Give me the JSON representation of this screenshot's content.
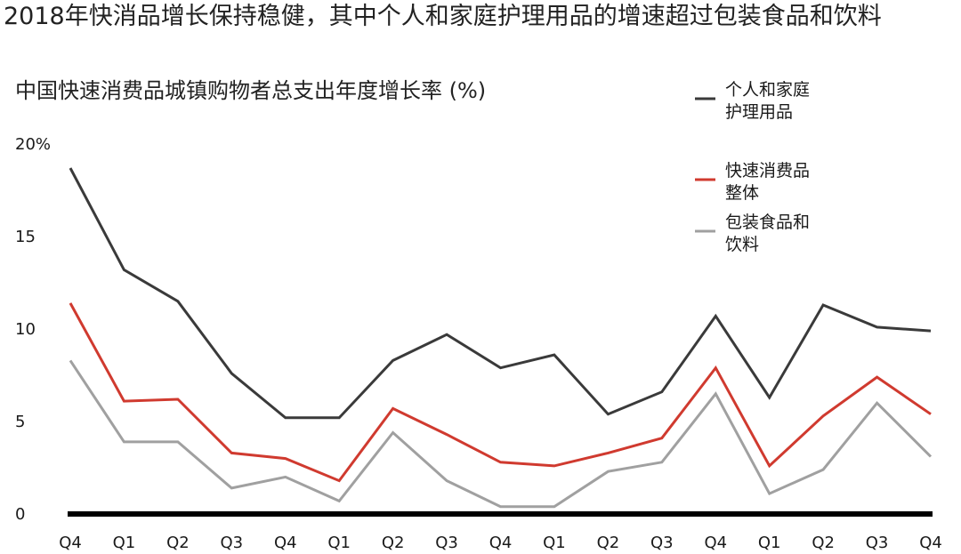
{
  "page": {
    "headline": "2018年快消品增长保持稳健，其中个人和家庭护理用品的增速超过包装食品和饮料"
  },
  "chart_data": {
    "type": "line",
    "title": "中国快速消费品城镇购物者总支出年度增长率 (%)",
    "xlabel": "",
    "ylabel": "",
    "ylim": [
      0,
      20
    ],
    "y_ticks": [
      "0",
      "5",
      "10",
      "15",
      "20%"
    ],
    "y_tick_values": [
      0,
      5,
      10,
      15,
      20
    ],
    "categories": [
      "Q4",
      "Q1",
      "Q2",
      "Q3",
      "Q4",
      "Q1",
      "Q2",
      "Q3",
      "Q4",
      "Q1",
      "Q2",
      "Q3",
      "Q4",
      "Q1",
      "Q2",
      "Q3",
      "Q4"
    ],
    "grid": false,
    "legend_position": "top-right",
    "series": [
      {
        "name": "个人和家庭护理用品",
        "legend_lines": [
          "个人和家庭",
          "护理用品"
        ],
        "color": "#3a3a3a",
        "values": [
          18.7,
          13.2,
          11.5,
          7.6,
          5.2,
          5.2,
          8.3,
          9.7,
          7.9,
          8.6,
          5.4,
          6.6,
          10.7,
          6.3,
          11.3,
          10.1,
          9.9
        ]
      },
      {
        "name": "快速消费品整体",
        "legend_lines": [
          "快速消费品",
          "整体"
        ],
        "color": "#d03a2f",
        "values": [
          11.4,
          6.1,
          6.2,
          3.3,
          3.0,
          1.8,
          5.7,
          4.3,
          2.8,
          2.6,
          3.3,
          4.1,
          7.9,
          2.6,
          5.3,
          7.4,
          5.4
        ]
      },
      {
        "name": "包装食品和饮料",
        "legend_lines": [
          "包装食品和",
          "饮料"
        ],
        "color": "#a0a0a0",
        "values": [
          8.3,
          3.9,
          3.9,
          1.4,
          2.0,
          0.7,
          4.4,
          1.8,
          0.4,
          0.4,
          2.3,
          2.8,
          6.5,
          1.1,
          2.4,
          6.0,
          3.1
        ]
      }
    ]
  }
}
